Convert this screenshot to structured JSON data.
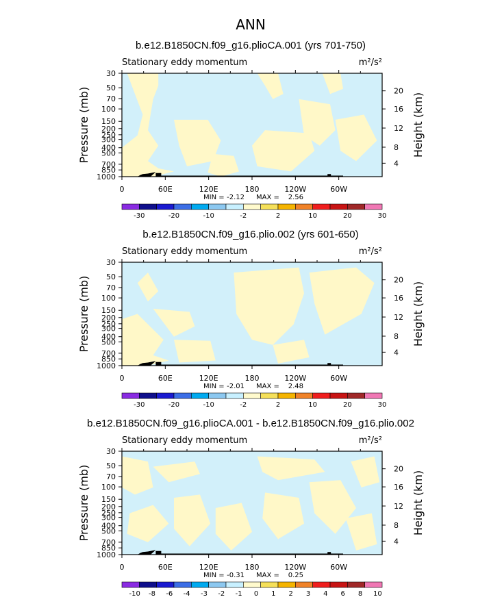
{
  "page_title": "ANN",
  "chart_data": [
    {
      "type": "heatmap",
      "title": "b.e12.B1850CN.f09_g16.plioCA.001 (yrs 701-750)",
      "subtitle": "Stationary eddy momentum",
      "units": "m²/s²",
      "ylabel": "Pressure (mb)",
      "y2label": "Height (km)",
      "yticks": [
        "30",
        "50",
        "70",
        "100",
        "150",
        "200",
        "250",
        "300",
        "400",
        "500",
        "700",
        "850",
        "1000"
      ],
      "y2ticks": [
        "20",
        "16",
        "12",
        "8",
        "4"
      ],
      "xticks": [
        "0",
        "60E",
        "120E",
        "180",
        "120W",
        "60W"
      ],
      "stats": {
        "min_label": "MIN =",
        "min": "-2.12",
        "max_label": "MAX =",
        "max": "2.56"
      },
      "colorbar": {
        "labels": [
          "-30",
          "-20",
          "-10",
          "-2",
          "2",
          "10",
          "20",
          "30"
        ]
      },
      "pattern": 0
    },
    {
      "type": "heatmap",
      "title": "b.e12.B1850CN.f09_g16.plio.002 (yrs 601-650)",
      "subtitle": "Stationary eddy momentum",
      "units": "m²/s²",
      "ylabel": "Pressure (mb)",
      "y2label": "Height (km)",
      "yticks": [
        "30",
        "50",
        "70",
        "100",
        "150",
        "200",
        "250",
        "300",
        "400",
        "500",
        "700",
        "850",
        "1000"
      ],
      "y2ticks": [
        "20",
        "16",
        "12",
        "8",
        "4"
      ],
      "xticks": [
        "0",
        "60E",
        "120E",
        "180",
        "120W",
        "60W"
      ],
      "stats": {
        "min_label": "MIN =",
        "min": "-2.01",
        "max_label": "MAX =",
        "max": "2.48"
      },
      "colorbar": {
        "labels": [
          "-30",
          "-20",
          "-10",
          "-2",
          "2",
          "10",
          "20",
          "30"
        ]
      },
      "pattern": 1
    },
    {
      "type": "heatmap",
      "title": "b.e12.B1850CN.f09_g16.plioCA.001 - b.e12.B1850CN.f09_g16.plio.002",
      "subtitle": "Stationary eddy momentum",
      "units": "m²/s²",
      "ylabel": "Pressure (mb)",
      "y2label": "Height (km)",
      "yticks": [
        "30",
        "50",
        "70",
        "100",
        "150",
        "200",
        "250",
        "300",
        "400",
        "500",
        "700",
        "850",
        "1000"
      ],
      "y2ticks": [
        "20",
        "16",
        "12",
        "8",
        "4"
      ],
      "xticks": [
        "0",
        "60E",
        "120E",
        "180",
        "120W",
        "60W"
      ],
      "stats": {
        "min_label": "MIN =",
        "min": "-0.31",
        "max_label": "MAX =",
        "max": "0.25"
      },
      "colorbar": {
        "labels": [
          "-10",
          "-8",
          "-6",
          "-4",
          "-3",
          "-2",
          "-1",
          "0",
          "1",
          "2",
          "3",
          "4",
          "6",
          "8",
          "10"
        ]
      },
      "pattern": 2
    }
  ],
  "colors": {
    "colorbar_fills": [
      "#8a2be2",
      "#0f0f8c",
      "#1a1ad0",
      "#3c6ee6",
      "#00aaf0",
      "#8cc8f0",
      "#c8f0ff",
      "#fffacd",
      "#f5e05a",
      "#f5b400",
      "#f08228",
      "#f01e1e",
      "#c81414",
      "#a02828",
      "#f078b4"
    ],
    "negative_fill": "#d2f0fa",
    "positive_fill": "#fff8c8",
    "topography": "#000000"
  }
}
